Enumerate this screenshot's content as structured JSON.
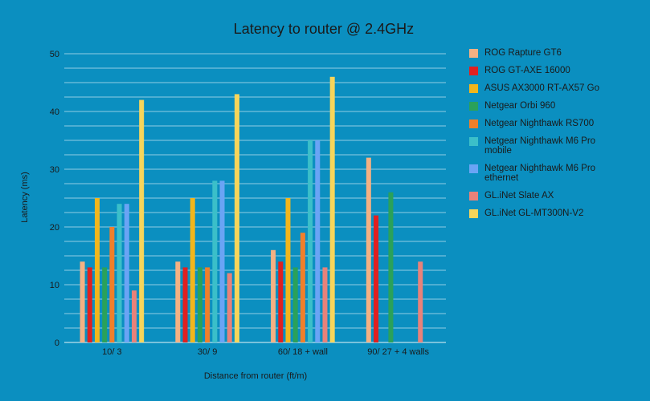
{
  "chart_data": {
    "type": "bar",
    "title": "Latency to router @ 2.4GHz",
    "xlabel": "Distance from router (ft/m)",
    "ylabel": "Latency (ms)",
    "ylim": [
      0,
      50
    ],
    "yticks": [
      0,
      10,
      20,
      30,
      40,
      50
    ],
    "grid": "horizontal, every 2.5",
    "legend": "right",
    "categories": [
      "10/ 3",
      "30/ 9",
      "60/ 18 + wall",
      "90/ 27 + 4 walls"
    ],
    "series": [
      {
        "name": "ROG Rapture GT6",
        "color": "#f4b183",
        "values": [
          14,
          14,
          16,
          32
        ]
      },
      {
        "name": "ROG GT-AXE 16000",
        "color": "#e02020",
        "values": [
          13,
          13,
          14,
          22
        ]
      },
      {
        "name": "ASUS AX3000 RT-AX57 Go",
        "color": "#f2b61c",
        "values": [
          25,
          25,
          25,
          null
        ]
      },
      {
        "name": "Netgear Orbi 960",
        "color": "#2aa15a",
        "values": [
          13,
          13,
          13,
          26
        ]
      },
      {
        "name": "Netgear Nighthawk RS700",
        "color": "#f07f2a",
        "values": [
          20,
          13,
          19,
          null
        ]
      },
      {
        "name": "Netgear Nighthawk M6 Pro mobile",
        "color": "#3bbfc9",
        "values": [
          24,
          28,
          35,
          null
        ]
      },
      {
        "name": "Netgear Nighthawk M6 Pro ethernet",
        "color": "#6aa4f5",
        "values": [
          24,
          28,
          35,
          null
        ]
      },
      {
        "name": "GL.iNet Slate AX",
        "color": "#e8827a",
        "values": [
          9,
          12,
          13,
          14
        ]
      },
      {
        "name": "GL.iNet GL-MT300N-V2",
        "color": "#f7d55a",
        "values": [
          42,
          43,
          46,
          null
        ]
      }
    ]
  }
}
